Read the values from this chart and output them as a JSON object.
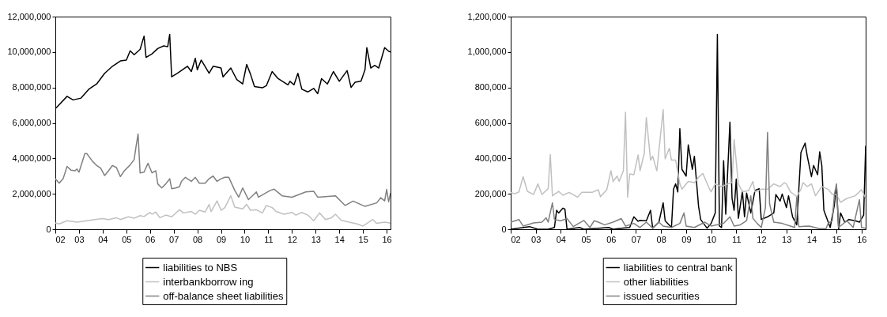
{
  "chart_data": [
    {
      "type": "line",
      "legend": "bottom",
      "grid": false,
      "ylim": [
        0,
        12000000
      ],
      "yticks": [
        {
          "value": 0,
          "label": "0"
        },
        {
          "value": 2000000,
          "label": "2,000,000"
        },
        {
          "value": 4000000,
          "label": "4,000,000"
        },
        {
          "value": 6000000,
          "label": "6,000,000"
        },
        {
          "value": 8000000,
          "label": "8,000,000"
        },
        {
          "value": 10000000,
          "label": "10,000,000"
        },
        {
          "value": 12000000,
          "label": "12,000,000"
        }
      ],
      "xlim": [
        "2002-01",
        "2016-03"
      ],
      "xticks": [
        {
          "value": "2002-01",
          "label": "02"
        },
        {
          "value": "2003-01",
          "label": "03"
        },
        {
          "value": "2004-01",
          "label": "04"
        },
        {
          "value": "2005-01",
          "label": "05"
        },
        {
          "value": "2006-01",
          "label": "06"
        },
        {
          "value": "2007-01",
          "label": "07"
        },
        {
          "value": "2008-01",
          "label": "08"
        },
        {
          "value": "2009-01",
          "label": "09"
        },
        {
          "value": "2010-01",
          "label": "10"
        },
        {
          "value": "2011-01",
          "label": "11"
        },
        {
          "value": "2012-01",
          "label": "12"
        },
        {
          "value": "2013-01",
          "label": "13"
        },
        {
          "value": "2014-01",
          "label": "14"
        },
        {
          "value": "2015-01",
          "label": "15"
        },
        {
          "value": "2016-01",
          "label": "16"
        }
      ],
      "series": [
        {
          "name": "liabilities to NBS",
          "color": "#000000",
          "x": [
            "2002-01",
            "2002-07",
            "2002-10",
            "2003-02",
            "2003-06",
            "2003-10",
            "2004-02",
            "2004-06",
            "2004-10",
            "2005-01",
            "2005-03",
            "2005-05",
            "2005-08",
            "2005-10",
            "2005-11",
            "2006-02",
            "2006-05",
            "2006-08",
            "2006-10",
            "2006-11",
            "2006-12",
            "2007-03",
            "2007-08",
            "2007-10",
            "2007-12",
            "2008-01",
            "2008-03",
            "2008-07",
            "2008-09",
            "2009-01",
            "2009-02",
            "2009-06",
            "2009-09",
            "2009-12",
            "2010-02",
            "2010-04",
            "2010-06",
            "2010-10",
            "2010-12",
            "2011-03",
            "2011-06",
            "2011-11",
            "2011-12",
            "2012-02",
            "2012-04",
            "2012-06",
            "2012-09",
            "2012-12",
            "2013-02",
            "2013-04",
            "2013-07",
            "2013-10",
            "2014-01",
            "2014-03",
            "2014-05",
            "2014-07",
            "2014-09",
            "2014-12",
            "2015-02",
            "2015-03",
            "2015-05",
            "2015-07",
            "2015-09",
            "2015-12",
            "2016-02",
            "2016-03"
          ],
          "values": [
            6800000,
            7500000,
            7300000,
            7400000,
            7900000,
            8200000,
            8800000,
            9200000,
            9500000,
            9550000,
            10070000,
            9850000,
            10150000,
            10900000,
            9700000,
            9900000,
            10200000,
            10350000,
            10300000,
            11000000,
            8600000,
            8800000,
            9200000,
            8900000,
            9650000,
            9000000,
            9550000,
            8800000,
            9200000,
            9100000,
            8600000,
            9100000,
            8450000,
            8200000,
            9300000,
            8750000,
            8050000,
            7980000,
            8100000,
            8900000,
            8500000,
            8150000,
            8350000,
            8150000,
            8800000,
            7900000,
            7750000,
            7950000,
            7650000,
            8500000,
            8200000,
            8900000,
            8350000,
            8650000,
            8950000,
            8000000,
            8300000,
            8350000,
            9000000,
            10250000,
            9100000,
            9250000,
            9100000,
            10250000,
            10050000,
            10000000
          ]
        },
        {
          "name": "interbankborrow ing",
          "color": "#c0c0c0",
          "x": [
            "2002-01",
            "2002-03",
            "2002-07",
            "2002-12",
            "2003-05",
            "2003-09",
            "2004-01",
            "2004-04",
            "2004-08",
            "2004-10",
            "2005-02",
            "2005-05",
            "2005-08",
            "2005-10",
            "2006-01",
            "2006-02",
            "2006-04",
            "2006-06",
            "2006-09",
            "2006-12",
            "2007-04",
            "2007-06",
            "2007-10",
            "2007-12",
            "2008-02",
            "2008-05",
            "2008-07",
            "2008-08",
            "2008-11",
            "2009-01",
            "2009-03",
            "2009-06",
            "2009-08",
            "2009-12",
            "2010-02",
            "2010-04",
            "2010-07",
            "2010-10",
            "2010-12",
            "2011-03",
            "2011-05",
            "2011-09",
            "2012-01",
            "2012-03",
            "2012-06",
            "2012-09",
            "2012-12",
            "2013-03",
            "2013-06",
            "2013-09",
            "2013-11",
            "2014-02",
            "2014-06",
            "2014-10",
            "2015-01",
            "2015-06",
            "2015-08",
            "2015-12",
            "2016-03"
          ],
          "values": [
            360000,
            300000,
            480000,
            400000,
            480000,
            550000,
            600000,
            550000,
            650000,
            550000,
            700000,
            620000,
            770000,
            720000,
            950000,
            850000,
            970000,
            650000,
            800000,
            700000,
            1100000,
            920000,
            1000000,
            850000,
            1070000,
            970000,
            1400000,
            1000000,
            1600000,
            1070000,
            1220000,
            1890000,
            1250000,
            1150000,
            1400000,
            1070000,
            1100000,
            920000,
            1340000,
            1220000,
            1000000,
            850000,
            950000,
            800000,
            950000,
            800000,
            480000,
            920000,
            550000,
            650000,
            850000,
            500000,
            400000,
            300000,
            180000,
            550000,
            330000,
            400000,
            350000
          ]
        },
        {
          "name": "off-balance sheet liabilities",
          "color": "#808080",
          "x": [
            "2002-01",
            "2002-03",
            "2002-05",
            "2002-07",
            "2002-09",
            "2002-11",
            "2002-12",
            "2003-01",
            "2003-03",
            "2003-04",
            "2003-05",
            "2003-08",
            "2003-10",
            "2003-12",
            "2004-02",
            "2004-04",
            "2004-06",
            "2004-08",
            "2004-10",
            "2004-12",
            "2005-03",
            "2005-05",
            "2005-06",
            "2005-07",
            "2005-08",
            "2005-10",
            "2005-11",
            "2005-12",
            "2006-02",
            "2006-04",
            "2006-05",
            "2006-07",
            "2006-09",
            "2006-10",
            "2006-11",
            "2006-12",
            "2007-02",
            "2007-04",
            "2007-05",
            "2007-07",
            "2007-10",
            "2007-12",
            "2008-02",
            "2008-05",
            "2008-07",
            "2008-09",
            "2008-11",
            "2009-01",
            "2009-03",
            "2009-05",
            "2009-08",
            "2009-10",
            "2009-12",
            "2010-03",
            "2010-07",
            "2010-08",
            "2011-02",
            "2011-04",
            "2011-08",
            "2012-01",
            "2012-08",
            "2012-12",
            "2013-02",
            "2013-11",
            "2014-04",
            "2014-08",
            "2015-02",
            "2015-08",
            "2015-10",
            "2015-12",
            "2016-01",
            "2016-02",
            "2016-03"
          ],
          "values": [
            2850000,
            2600000,
            2850000,
            3550000,
            3330000,
            3300000,
            3400000,
            3220000,
            3900000,
            4270000,
            4270000,
            3820000,
            3600000,
            3450000,
            3030000,
            3300000,
            3600000,
            3480000,
            2970000,
            3300000,
            3630000,
            3930000,
            4700000,
            5380000,
            3180000,
            3220000,
            3480000,
            3720000,
            3180000,
            3300000,
            2560000,
            2330000,
            2560000,
            2700000,
            2850000,
            2290000,
            2330000,
            2400000,
            2700000,
            2930000,
            2700000,
            2930000,
            2600000,
            2600000,
            2850000,
            3000000,
            2700000,
            2850000,
            2930000,
            2930000,
            2190000,
            1810000,
            2330000,
            1670000,
            2110000,
            1810000,
            2190000,
            2260000,
            1890000,
            1810000,
            2110000,
            2140000,
            1810000,
            1890000,
            1340000,
            1590000,
            1290000,
            1490000,
            1780000,
            1600000,
            2250000,
            1550000,
            2050000
          ]
        }
      ]
    },
    {
      "type": "line",
      "legend": "bottom",
      "grid": false,
      "ylim": [
        0,
        1200000
      ],
      "yticks": [
        {
          "value": 0,
          "label": "0"
        },
        {
          "value": 200000,
          "label": "200,000"
        },
        {
          "value": 400000,
          "label": "400,000"
        },
        {
          "value": 600000,
          "label": "600,000"
        },
        {
          "value": 800000,
          "label": "800,000"
        },
        {
          "value": 1000000,
          "label": "1,000,000"
        },
        {
          "value": 1200000,
          "label": "1,200,000"
        }
      ],
      "xlim": [
        "2002-01",
        "2016-03"
      ],
      "xticks": [
        {
          "value": "2002-01",
          "label": "02"
        },
        {
          "value": "2003-01",
          "label": "03"
        },
        {
          "value": "2004-01",
          "label": "04"
        },
        {
          "value": "2005-01",
          "label": "05"
        },
        {
          "value": "2006-01",
          "label": "06"
        },
        {
          "value": "2007-01",
          "label": "07"
        },
        {
          "value": "2008-01",
          "label": "08"
        },
        {
          "value": "2009-01",
          "label": "09"
        },
        {
          "value": "2010-01",
          "label": "10"
        },
        {
          "value": "2011-01",
          "label": "11"
        },
        {
          "value": "2012-01",
          "label": "12"
        },
        {
          "value": "2013-01",
          "label": "13"
        },
        {
          "value": "2014-01",
          "label": "14"
        },
        {
          "value": "2015-01",
          "label": "15"
        },
        {
          "value": "2016-01",
          "label": "16"
        }
      ],
      "series": [
        {
          "name": "liabilities to central bank",
          "color": "#000000",
          "x": [
            "2002-01",
            "2002-10",
            "2003-02",
            "2003-07",
            "2003-10",
            "2003-11",
            "2003-12",
            "2004-02",
            "2004-03",
            "2004-04",
            "2004-10",
            "2004-12",
            "2005-12",
            "2006-02",
            "2006-07",
            "2006-10",
            "2006-12",
            "2007-02",
            "2007-03",
            "2007-06",
            "2007-08",
            "2007-09",
            "2007-12",
            "2008-02",
            "2008-03",
            "2008-06",
            "2008-07",
            "2008-08",
            "2008-09",
            "2008-10",
            "2008-11",
            "2009-01",
            "2009-02",
            "2009-04",
            "2009-05",
            "2009-07",
            "2009-08",
            "2009-11",
            "2010-01",
            "2010-03",
            "2010-04",
            "2010-05",
            "2010-06",
            "2010-07",
            "2010-08",
            "2010-10",
            "2010-11",
            "2010-12",
            "2011-01",
            "2011-02",
            "2011-04",
            "2011-05",
            "2011-06",
            "2011-08",
            "2011-10",
            "2011-12",
            "2012-01",
            "2012-04",
            "2012-07",
            "2012-08",
            "2012-10",
            "2012-11",
            "2013-01",
            "2013-02",
            "2013-04",
            "2013-06",
            "2013-08",
            "2013-10",
            "2013-11",
            "2014-01",
            "2014-02",
            "2014-04",
            "2014-05",
            "2014-06",
            "2014-07",
            "2014-10",
            "2014-12",
            "2015-01",
            "2015-02",
            "2015-03",
            "2015-05",
            "2015-07",
            "2015-10",
            "2015-12",
            "2016-02",
            "2016-03"
          ],
          "values": [
            0,
            15000,
            0,
            0,
            10000,
            107000,
            92000,
            119000,
            114000,
            0,
            10000,
            0,
            10000,
            0,
            7000,
            10000,
            70000,
            45000,
            50000,
            48000,
            107000,
            6000,
            40000,
            149000,
            48000,
            10000,
            226000,
            256000,
            211000,
            568000,
            338000,
            300000,
            476000,
            338000,
            412000,
            129000,
            55000,
            6000,
            33000,
            92000,
            1100000,
            18000,
            10000,
            387000,
            85000,
            605000,
            174000,
            107000,
            283000,
            62000,
            214000,
            70000,
            204000,
            92000,
            219000,
            229000,
            55000,
            70000,
            92000,
            196000,
            159000,
            199000,
            122000,
            189000,
            70000,
            25000,
            434000,
            486000,
            412000,
            297000,
            360000,
            308000,
            437000,
            360000,
            107000,
            10000,
            137000,
            248000,
            0,
            92000,
            40000,
            55000,
            48000,
            40000,
            80000,
            471000
          ]
        },
        {
          "name": "other liabilities",
          "color": "#c0c0c0",
          "x": [
            "2002-01",
            "2002-03",
            "2002-05",
            "2002-07",
            "2002-09",
            "2002-12",
            "2003-02",
            "2003-04",
            "2003-07",
            "2003-08",
            "2003-09",
            "2003-12",
            "2004-02",
            "2004-05",
            "2004-09",
            "2004-11",
            "2005-04",
            "2005-07",
            "2005-08",
            "2005-11",
            "2006-01",
            "2006-02",
            "2006-04",
            "2006-05",
            "2006-07",
            "2006-08",
            "2006-09",
            "2006-10",
            "2006-12",
            "2007-02",
            "2007-03",
            "2007-05",
            "2007-06",
            "2007-08",
            "2007-09",
            "2007-11",
            "2008-02",
            "2008-03",
            "2008-05",
            "2008-06",
            "2008-08",
            "2008-10",
            "2008-11",
            "2009-02",
            "2009-05",
            "2009-07",
            "2009-09",
            "2009-12",
            "2010-01",
            "2010-03",
            "2010-06",
            "2010-09",
            "2010-11",
            "2010-12",
            "2011-02",
            "2011-04",
            "2011-07",
            "2011-09",
            "2011-10",
            "2012-01",
            "2012-04",
            "2012-07",
            "2012-10",
            "2012-12",
            "2013-01",
            "2013-03",
            "2013-06",
            "2013-08",
            "2013-09",
            "2013-11",
            "2014-01",
            "2014-03",
            "2014-06",
            "2014-09",
            "2014-11",
            "2015-01",
            "2015-03",
            "2015-06",
            "2015-10",
            "2016-01",
            "2016-03"
          ],
          "values": [
            208000,
            200000,
            211000,
            297000,
            214000,
            196000,
            256000,
            196000,
            229000,
            422000,
            189000,
            214000,
            192000,
            208000,
            181000,
            208000,
            208000,
            223000,
            184000,
            223000,
            330000,
            270000,
            300000,
            270000,
            330000,
            660000,
            181000,
            312000,
            308000,
            419000,
            330000,
            427000,
            630000,
            390000,
            412000,
            330000,
            675000,
            397000,
            457000,
            390000,
            390000,
            256000,
            226000,
            270000,
            263000,
            293000,
            315000,
            233000,
            211000,
            256000,
            241000,
            256000,
            263000,
            506000,
            256000,
            211000,
            219000,
            270000,
            211000,
            226000,
            226000,
            256000,
            241000,
            263000,
            256000,
            211000,
            184000,
            226000,
            263000,
            241000,
            256000,
            189000,
            241000,
            226000,
            196000,
            196000,
            152000,
            174000,
            189000,
            223000,
            174000
          ]
        },
        {
          "name": "issued securities",
          "color": "#808080",
          "x": [
            "2002-01",
            "2002-05",
            "2002-07",
            "2002-12",
            "2003-04",
            "2003-06",
            "2003-07",
            "2003-09",
            "2003-10",
            "2004-01",
            "2004-04",
            "2004-07",
            "2004-12",
            "2005-03",
            "2005-05",
            "2005-07",
            "2005-10",
            "2006-02",
            "2006-06",
            "2006-08",
            "2006-12",
            "2007-03",
            "2007-06",
            "2007-09",
            "2007-12",
            "2008-02",
            "2008-06",
            "2008-10",
            "2008-12",
            "2009-01",
            "2009-05",
            "2009-10",
            "2010-01",
            "2010-07",
            "2010-10",
            "2010-12",
            "2011-03",
            "2011-06",
            "2011-08",
            "2011-09",
            "2011-11",
            "2012-01",
            "2012-03",
            "2012-04",
            "2012-05",
            "2012-07",
            "2012-11",
            "2013-03",
            "2013-05",
            "2013-06",
            "2013-07",
            "2013-12",
            "2014-05",
            "2014-08",
            "2014-09",
            "2014-11",
            "2014-12",
            "2015-01",
            "2015-02",
            "2015-06",
            "2015-09",
            "2015-12",
            "2016-01",
            "2016-03"
          ],
          "values": [
            40000,
            55000,
            18000,
            36000,
            40000,
            65000,
            40000,
            149000,
            55000,
            48000,
            60000,
            15000,
            50000,
            10000,
            48000,
            40000,
            25000,
            40000,
            60000,
            18000,
            33000,
            10000,
            40000,
            6000,
            40000,
            18000,
            10000,
            33000,
            92000,
            18000,
            10000,
            40000,
            18000,
            33000,
            70000,
            18000,
            25000,
            48000,
            189000,
            62000,
            33000,
            10000,
            122000,
            546000,
            144000,
            40000,
            33000,
            18000,
            10000,
            181000,
            15000,
            18000,
            3000,
            3000,
            33000,
            48000,
            196000,
            256000,
            10000,
            48000,
            10000,
            167000,
            10000,
            6000
          ]
        }
      ]
    }
  ]
}
